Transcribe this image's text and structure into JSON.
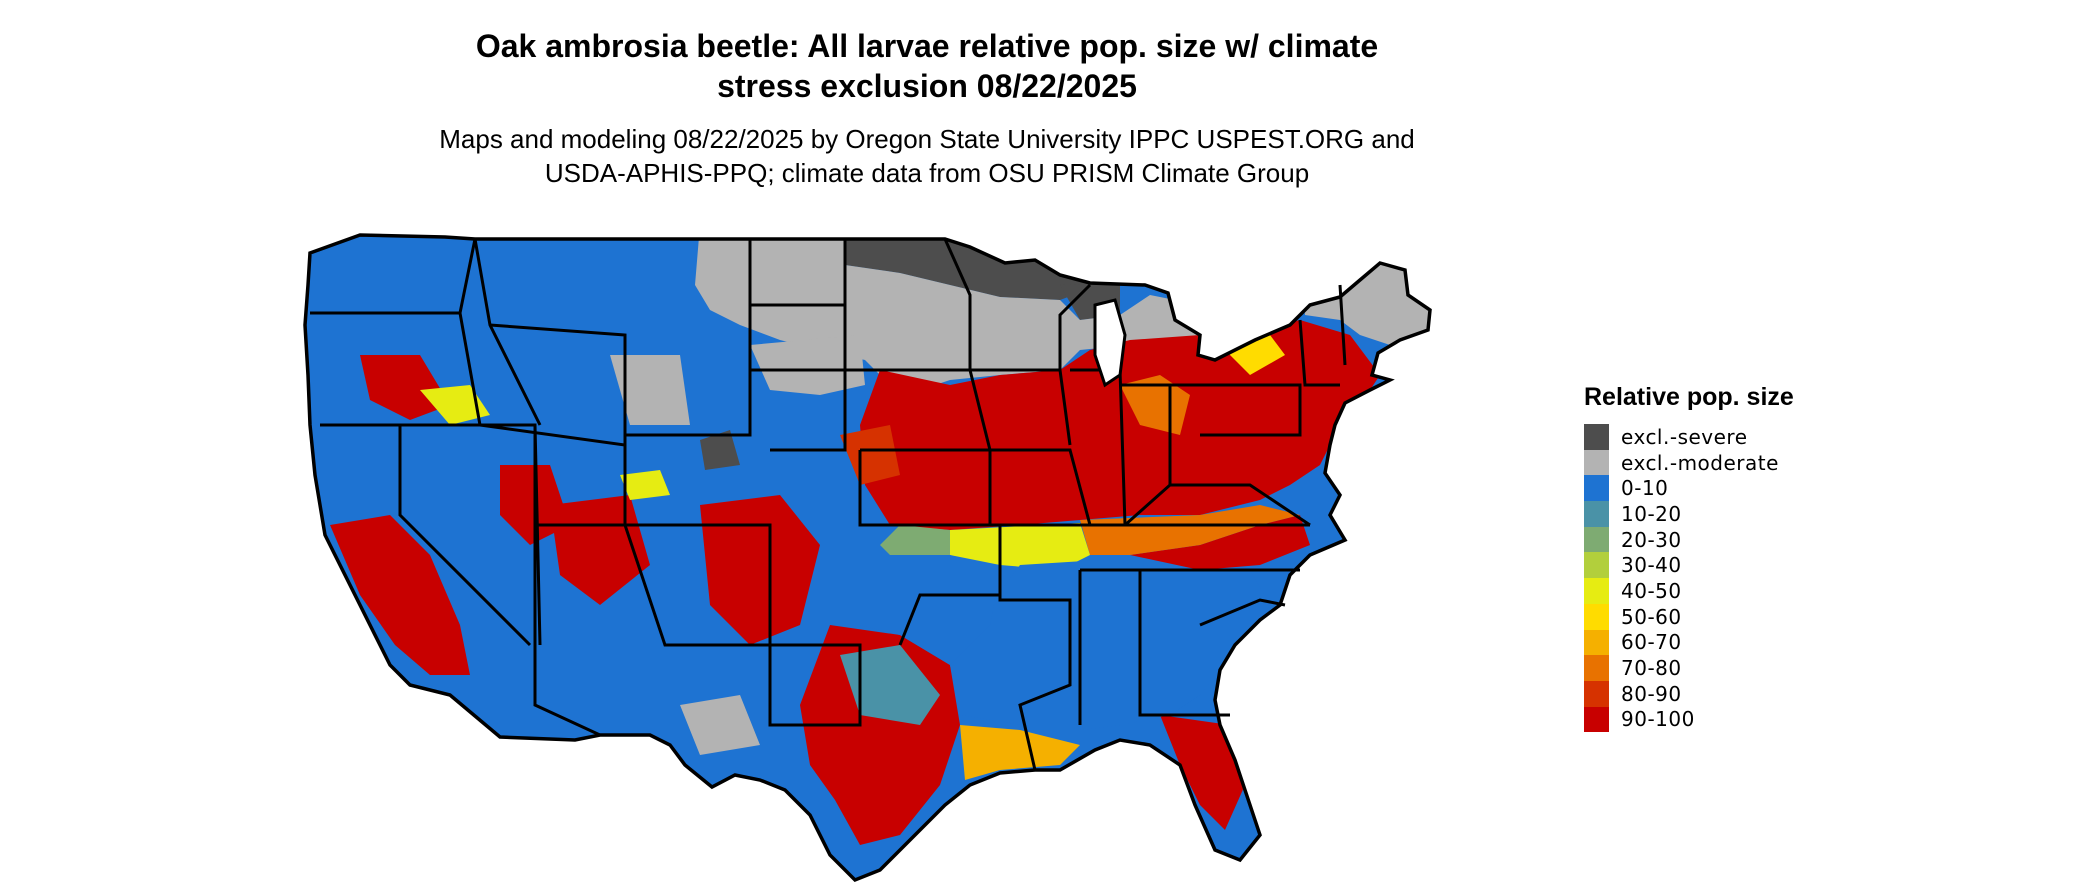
{
  "map": {
    "title_line1": "Oak ambrosia beetle: All larvae relative pop. size w/ climate",
    "title_line2": "stress exclusion 08/22/2025",
    "subtitle_line1": "Maps and modeling 08/22/2025 by Oregon State University IPPC USPEST.ORG and",
    "subtitle_line2": "USDA-APHIS-PPQ; climate data from OSU PRISM Climate Group",
    "background_color": "#ffffff",
    "border_color": "#000000"
  },
  "legend": {
    "title": "Relative pop. size",
    "items": [
      {
        "label": "excl.-severe",
        "color": "#4d4d4d"
      },
      {
        "label": "excl.-moderate",
        "color": "#b3b3b3"
      },
      {
        "label": "0-10",
        "color": "#1e73d2"
      },
      {
        "label": "10-20",
        "color": "#4a92a7"
      },
      {
        "label": "20-30",
        "color": "#7eab72"
      },
      {
        "label": "30-40",
        "color": "#b2cf3c"
      },
      {
        "label": "40-50",
        "color": "#e6ec12"
      },
      {
        "label": "50-60",
        "color": "#ffdc00"
      },
      {
        "label": "60-70",
        "color": "#f5b000"
      },
      {
        "label": "70-80",
        "color": "#e87200"
      },
      {
        "label": "80-90",
        "color": "#d63200"
      },
      {
        "label": "90-100",
        "color": "#c80000"
      }
    ]
  }
}
